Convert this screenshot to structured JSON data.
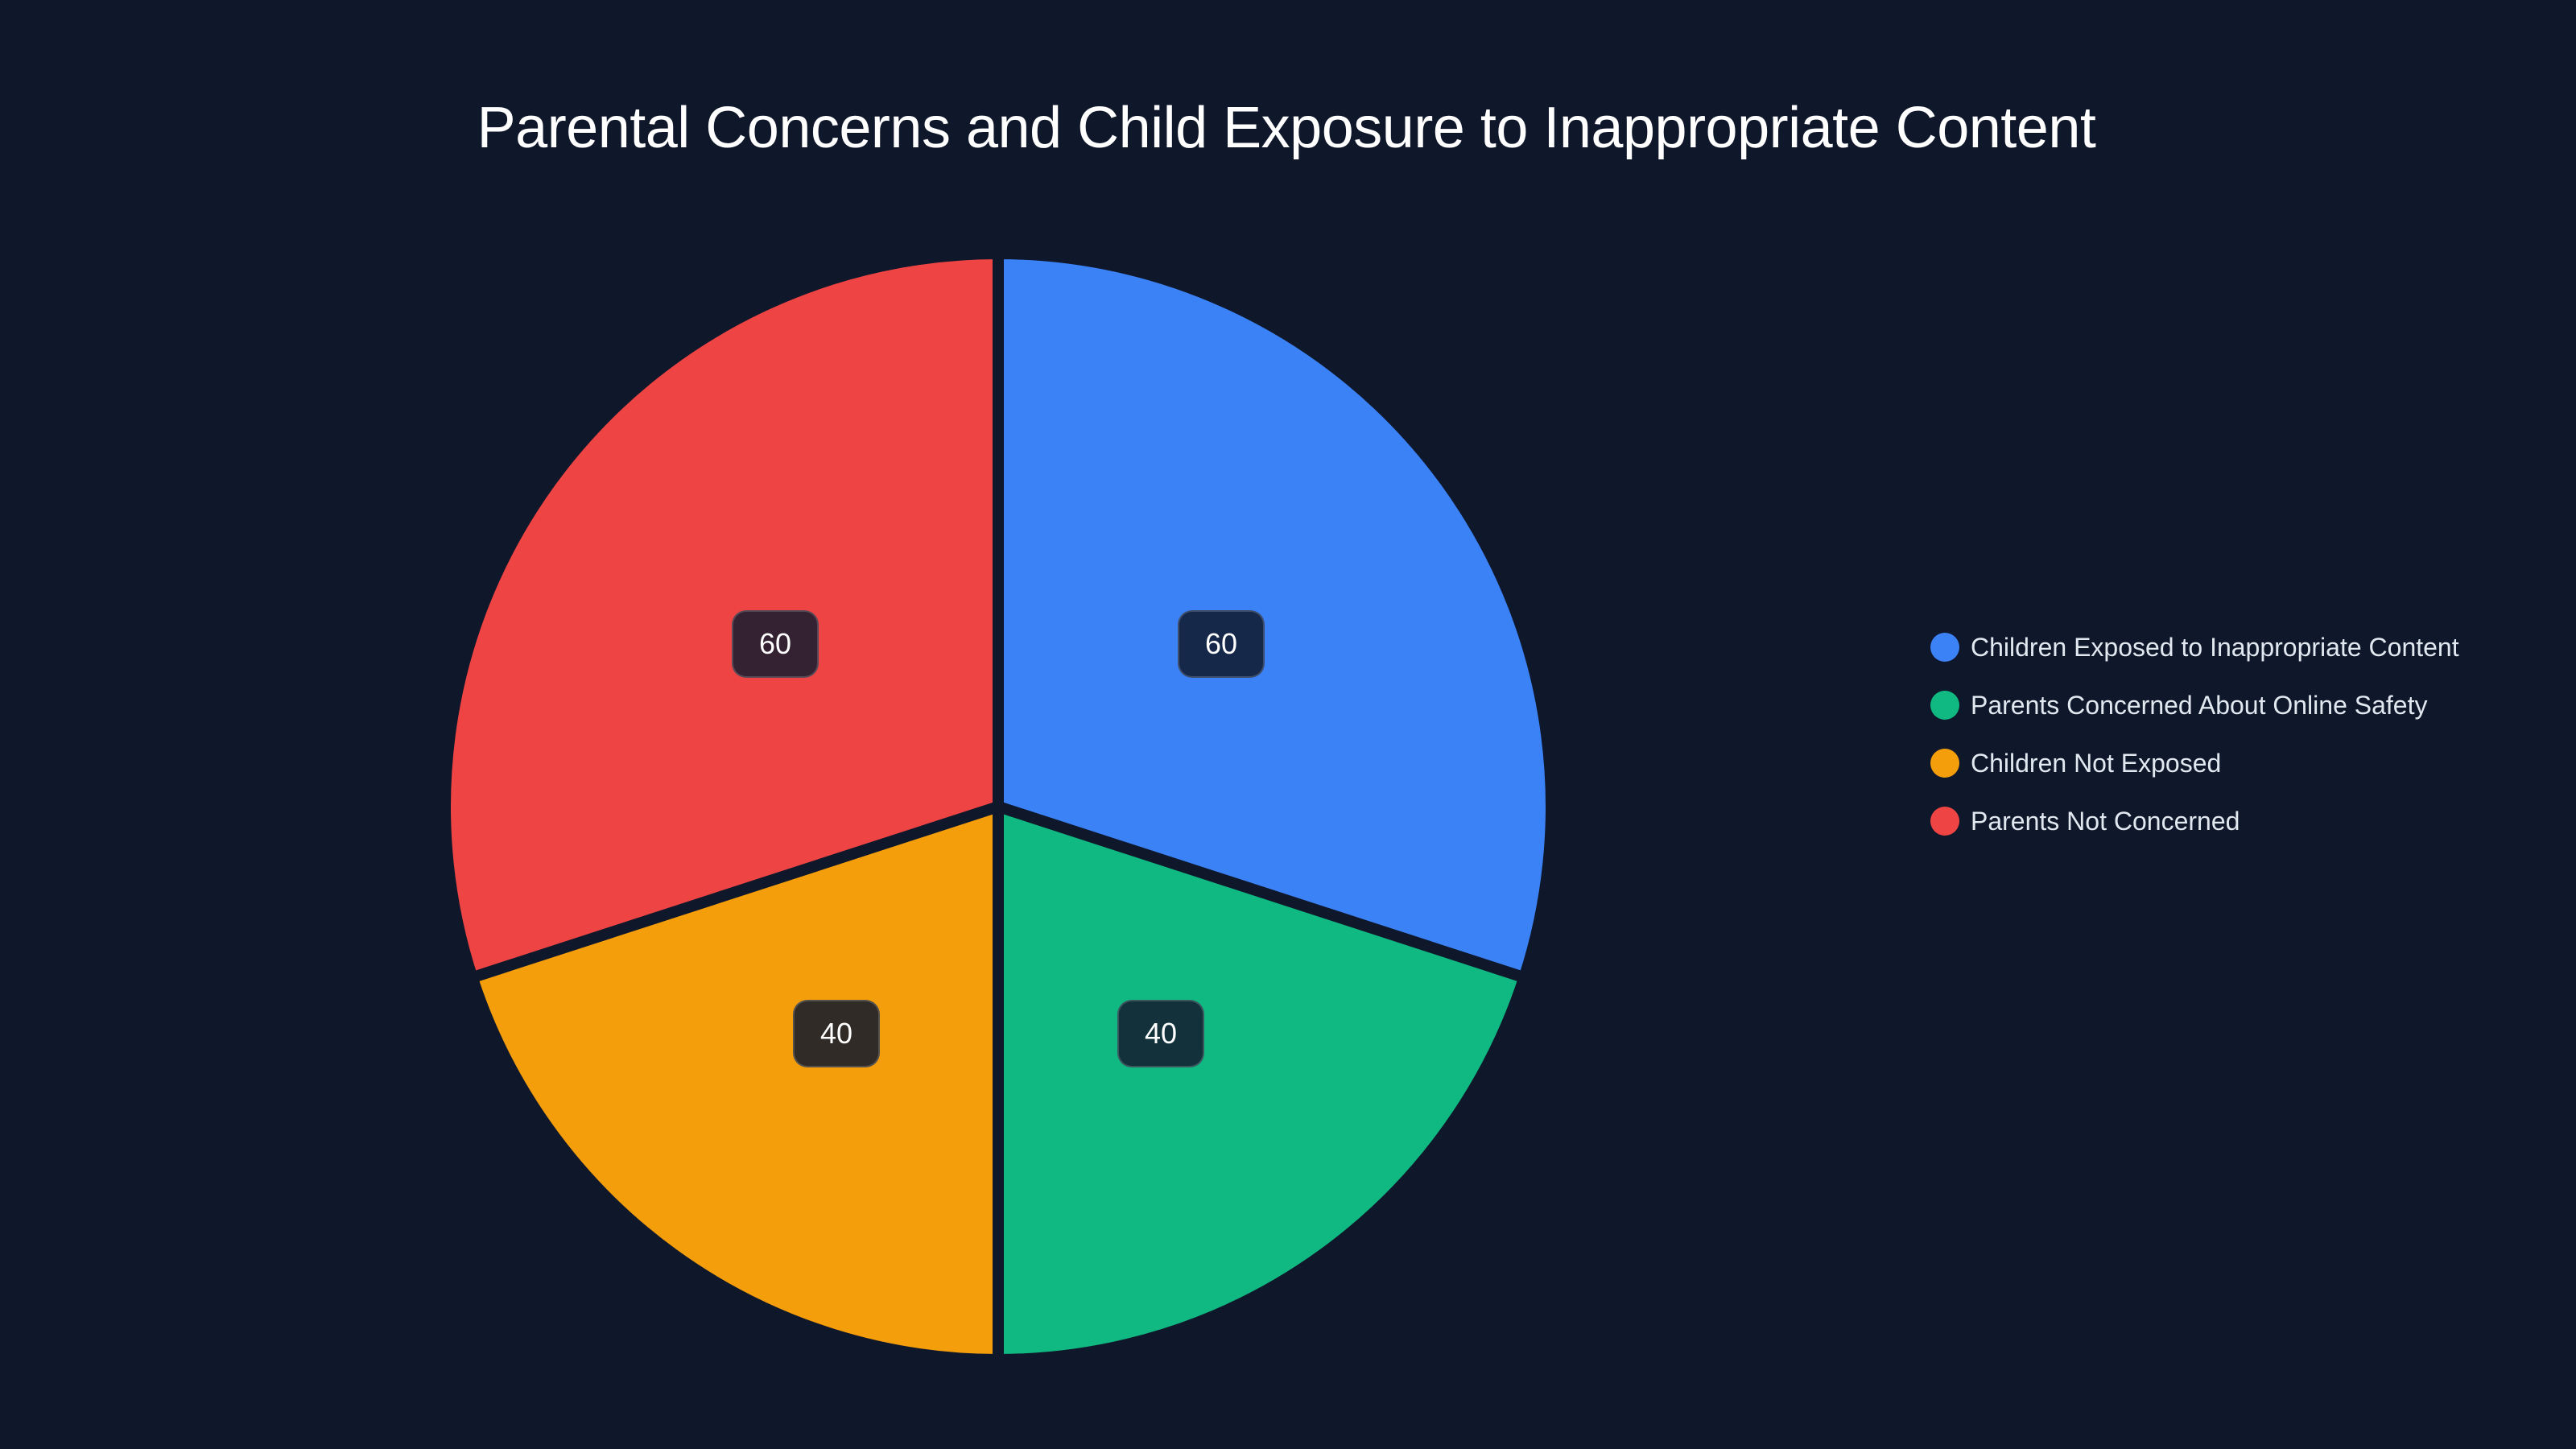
{
  "chart_data": {
    "type": "pie",
    "title": "Parental Concerns and Child Exposure to Inappropriate Content",
    "categories": [
      "Children Exposed to Inappropriate Content",
      "Parents Concerned About Online Safety",
      "Children Not Exposed",
      "Parents Not Concerned"
    ],
    "values": [
      60,
      40,
      40,
      60
    ],
    "colors": [
      "#3b82f6",
      "#10b981",
      "#f59e0b",
      "#ef4444"
    ],
    "data_labels": [
      "60",
      "40",
      "40",
      "60"
    ],
    "legend_position": "right",
    "start_angle_deg": 0,
    "direction": "clockwise"
  },
  "background": "#0f172a",
  "legend": {
    "items": [
      {
        "label": "Children Exposed to Inappropriate Content",
        "color": "#3b82f6"
      },
      {
        "label": "Parents Concerned About Online Safety",
        "color": "#10b981"
      },
      {
        "label": "Children Not Exposed",
        "color": "#f59e0b"
      },
      {
        "label": "Parents Not Concerned",
        "color": "#ef4444"
      }
    ]
  },
  "badges": [
    {
      "text": "60",
      "bg": "#15284a"
    },
    {
      "text": "40",
      "bg": "#12313a"
    },
    {
      "text": "40",
      "bg": "#302b27"
    },
    {
      "text": "60",
      "bg": "#342232"
    }
  ]
}
